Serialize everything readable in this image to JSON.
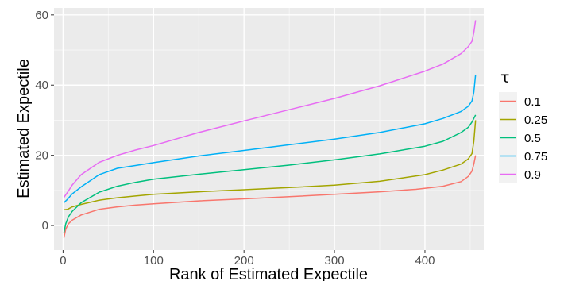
{
  "chart_data": {
    "type": "line",
    "title": "",
    "xlabel": "Rank of Estimated Expectile",
    "ylabel": "Estimated Expectile",
    "xlim": [
      -10,
      465
    ],
    "ylim": [
      -7,
      62
    ],
    "x_ticks": [
      0,
      100,
      200,
      300,
      400
    ],
    "y_ticks": [
      0,
      20,
      40,
      60
    ],
    "grid": true,
    "legend": {
      "title": "τ",
      "position": "right"
    },
    "series": [
      {
        "name": "0.1",
        "color": "#F8766D",
        "points": [
          [
            1,
            -3.5
          ],
          [
            3,
            -1.0
          ],
          [
            6,
            0.5
          ],
          [
            10,
            1.5
          ],
          [
            20,
            3.0
          ],
          [
            40,
            4.6
          ],
          [
            60,
            5.3
          ],
          [
            80,
            5.8
          ],
          [
            100,
            6.2
          ],
          [
            150,
            7.0
          ],
          [
            200,
            7.6
          ],
          [
            250,
            8.2
          ],
          [
            300,
            8.9
          ],
          [
            350,
            9.6
          ],
          [
            390,
            10.3
          ],
          [
            420,
            11.2
          ],
          [
            440,
            12.5
          ],
          [
            448,
            14.0
          ],
          [
            452,
            15.5
          ],
          [
            454,
            17.5
          ],
          [
            456,
            20.0
          ]
        ]
      },
      {
        "name": "0.25",
        "color": "#A3A500",
        "points": [
          [
            1,
            4.5
          ],
          [
            5,
            4.6
          ],
          [
            10,
            5.3
          ],
          [
            20,
            6.0
          ],
          [
            40,
            7.2
          ],
          [
            60,
            7.9
          ],
          [
            80,
            8.4
          ],
          [
            100,
            8.9
          ],
          [
            150,
            9.6
          ],
          [
            200,
            10.2
          ],
          [
            250,
            10.8
          ],
          [
            300,
            11.5
          ],
          [
            350,
            12.6
          ],
          [
            400,
            14.5
          ],
          [
            420,
            15.8
          ],
          [
            440,
            17.5
          ],
          [
            448,
            19.0
          ],
          [
            452,
            20.5
          ],
          [
            454,
            24.0
          ],
          [
            456,
            30.0
          ]
        ]
      },
      {
        "name": "0.5",
        "color": "#00BF7D",
        "points": [
          [
            1,
            -2.0
          ],
          [
            3,
            0.5
          ],
          [
            6,
            2.5
          ],
          [
            10,
            4.0
          ],
          [
            20,
            6.5
          ],
          [
            40,
            9.5
          ],
          [
            60,
            11.2
          ],
          [
            80,
            12.3
          ],
          [
            100,
            13.2
          ],
          [
            150,
            14.6
          ],
          [
            200,
            15.9
          ],
          [
            250,
            17.2
          ],
          [
            300,
            18.7
          ],
          [
            350,
            20.4
          ],
          [
            400,
            22.6
          ],
          [
            420,
            24.0
          ],
          [
            440,
            26.5
          ],
          [
            448,
            28.0
          ],
          [
            452,
            29.5
          ],
          [
            454,
            30.5
          ],
          [
            456,
            31.5
          ]
        ]
      },
      {
        "name": "0.75",
        "color": "#00B0F6",
        "points": [
          [
            1,
            6.5
          ],
          [
            5,
            7.5
          ],
          [
            10,
            9.0
          ],
          [
            20,
            11.0
          ],
          [
            40,
            14.5
          ],
          [
            60,
            16.3
          ],
          [
            80,
            17.1
          ],
          [
            100,
            17.9
          ],
          [
            150,
            19.8
          ],
          [
            200,
            21.4
          ],
          [
            250,
            23.0
          ],
          [
            300,
            24.6
          ],
          [
            350,
            26.5
          ],
          [
            400,
            29.0
          ],
          [
            420,
            30.5
          ],
          [
            440,
            32.5
          ],
          [
            448,
            34.0
          ],
          [
            452,
            35.5
          ],
          [
            454,
            38.0
          ],
          [
            456,
            43.0
          ]
        ]
      },
      {
        "name": "0.9",
        "color": "#E76BF3",
        "points": [
          [
            1,
            8.0
          ],
          [
            5,
            9.5
          ],
          [
            10,
            11.5
          ],
          [
            20,
            14.5
          ],
          [
            40,
            18.0
          ],
          [
            60,
            20.0
          ],
          [
            80,
            21.5
          ],
          [
            100,
            22.8
          ],
          [
            150,
            26.5
          ],
          [
            200,
            29.8
          ],
          [
            250,
            33.0
          ],
          [
            300,
            36.2
          ],
          [
            350,
            39.8
          ],
          [
            400,
            44.0
          ],
          [
            420,
            46.0
          ],
          [
            440,
            49.0
          ],
          [
            448,
            51.0
          ],
          [
            452,
            52.5
          ],
          [
            454,
            55.0
          ],
          [
            456,
            58.5
          ]
        ]
      }
    ]
  }
}
